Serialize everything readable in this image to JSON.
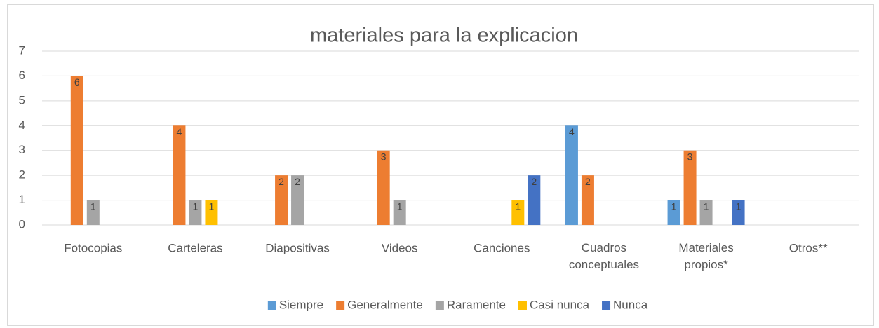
{
  "chart_data": {
    "type": "bar",
    "title": "materiales para la explicacion",
    "categories": [
      "Fotocopias",
      "Carteleras",
      "Diapositivas",
      "Videos",
      "Canciones",
      "Cuadros conceptuales",
      "Materiales propios*",
      "Otros**"
    ],
    "series": [
      {
        "name": "Siempre",
        "color": "#5b9bd5",
        "values": [
          null,
          null,
          null,
          null,
          null,
          4,
          1,
          null
        ]
      },
      {
        "name": "Generalmente",
        "color": "#ed7d31",
        "values": [
          6,
          4,
          2,
          3,
          null,
          2,
          3,
          null
        ]
      },
      {
        "name": "Raramente",
        "color": "#a5a5a5",
        "values": [
          1,
          1,
          2,
          1,
          null,
          null,
          1,
          null
        ]
      },
      {
        "name": "Casi nunca",
        "color": "#ffc000",
        "values": [
          null,
          1,
          null,
          null,
          1,
          null,
          null,
          null
        ]
      },
      {
        "name": "Nunca",
        "color": "#4472c4",
        "values": [
          null,
          null,
          null,
          null,
          2,
          null,
          1,
          null
        ]
      }
    ],
    "ylim": [
      0,
      7
    ],
    "yticks": [
      0,
      1,
      2,
      3,
      4,
      5,
      6,
      7
    ],
    "grid": true,
    "legend": "bottom"
  }
}
